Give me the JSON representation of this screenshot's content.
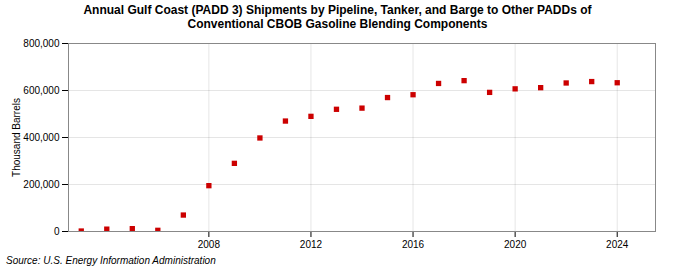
{
  "chart_data": {
    "type": "scatter",
    "title": "Annual Gulf Coast (PADD 3) Shipments by Pipeline, Tanker, and Barge to Other PADDs of\nConventional CBOB Gasoline Blending Components",
    "ylabel": "Thousand Barrels",
    "source": "Source: U.S. Energy Information Administration",
    "x": [
      2003,
      2004,
      2005,
      2006,
      2007,
      2008,
      2009,
      2010,
      2011,
      2012,
      2013,
      2014,
      2015,
      2016,
      2017,
      2018,
      2019,
      2020,
      2021,
      2022,
      2023,
      2024
    ],
    "values": [
      2000,
      10000,
      12000,
      5000,
      70000,
      195000,
      290000,
      398000,
      470000,
      490000,
      520000,
      525000,
      570000,
      582000,
      630000,
      642000,
      592000,
      607000,
      612000,
      632000,
      638000,
      633000
    ],
    "color": "#cc0000",
    "marker": "square",
    "xlim": [
      2002.5,
      2025.5
    ],
    "xticks": [
      2008,
      2012,
      2016,
      2020,
      2024
    ],
    "ylim": [
      0,
      800000
    ],
    "yticks": [
      0,
      {
        "value": 200000,
        "label": "200,000"
      },
      {
        "value": 400000,
        "label": "400,000"
      },
      {
        "value": 600000,
        "label": "600,000"
      },
      {
        "value": 800000,
        "label": "800,000"
      }
    ],
    "grid": true
  }
}
